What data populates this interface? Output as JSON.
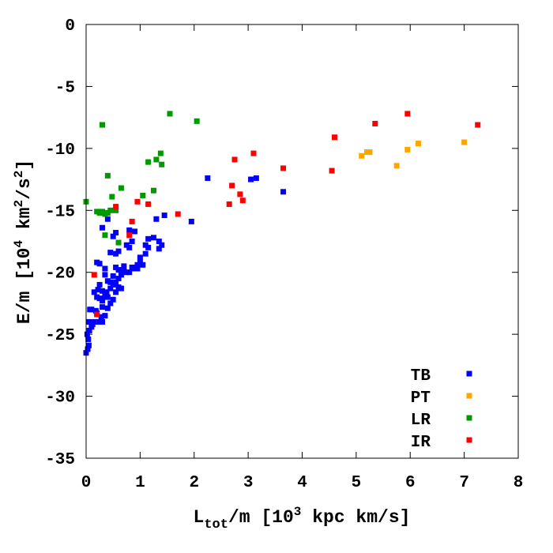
{
  "chart_data": {
    "type": "scatter",
    "xlabel": {
      "main": "L",
      "sub": "tot",
      "rest": "/m [10",
      "sup": "3",
      "tail": " kpc km/s]"
    },
    "ylabel": {
      "main": "E/m [10",
      "sup1": "4",
      "mid": " km",
      "sup2": "2",
      "mid2": "/s",
      "sup3": "2",
      "tail": "]"
    },
    "xlim": [
      0,
      8
    ],
    "ylim": [
      -35,
      0
    ],
    "x_ticks": [
      "0",
      "1",
      "2",
      "3",
      "4",
      "5",
      "6",
      "7",
      "8"
    ],
    "y_ticks": [
      "0",
      "-5",
      "-10",
      "-15",
      "-20",
      "-25",
      "-30",
      "-35"
    ],
    "legend_position": "bottom-right",
    "series": [
      {
        "name": "TB",
        "color": "#0000ff",
        "points": [
          [
            0.0,
            -26.5
          ],
          [
            0.03,
            -26.2
          ],
          [
            0.05,
            -25.9
          ],
          [
            0.04,
            -25.4
          ],
          [
            0.02,
            -25.0
          ],
          [
            0.06,
            -24.7
          ],
          [
            0.1,
            -24.4
          ],
          [
            0.12,
            -24.2
          ],
          [
            0.15,
            -24.0
          ],
          [
            0.05,
            -24.0
          ],
          [
            0.07,
            -23.0
          ],
          [
            0.1,
            -23.0
          ],
          [
            0.2,
            -23.3
          ],
          [
            0.18,
            -23.1
          ],
          [
            0.25,
            -24.0
          ],
          [
            0.3,
            -24.0
          ],
          [
            0.28,
            -23.6
          ],
          [
            0.35,
            -23.5
          ],
          [
            0.3,
            -22.8
          ],
          [
            0.4,
            -22.9
          ],
          [
            0.45,
            -22.5
          ],
          [
            0.5,
            -22.2
          ],
          [
            0.4,
            -22.0
          ],
          [
            0.35,
            -21.9
          ],
          [
            0.3,
            -22.3
          ],
          [
            0.25,
            -22.1
          ],
          [
            0.2,
            -22.0
          ],
          [
            0.15,
            -21.6
          ],
          [
            0.22,
            -21.4
          ],
          [
            0.25,
            -21.0
          ],
          [
            0.3,
            -21.5
          ],
          [
            0.38,
            -21.6
          ],
          [
            0.45,
            -21.3
          ],
          [
            0.5,
            -21.0
          ],
          [
            0.55,
            -21.6
          ],
          [
            0.6,
            -21.2
          ],
          [
            0.65,
            -21.3
          ],
          [
            0.55,
            -20.8
          ],
          [
            0.45,
            -20.8
          ],
          [
            0.4,
            -20.7
          ],
          [
            0.6,
            -20.5
          ],
          [
            0.65,
            -20.2
          ],
          [
            0.7,
            -19.9
          ],
          [
            0.75,
            -20.0
          ],
          [
            0.8,
            -20.0
          ],
          [
            0.7,
            -19.5
          ],
          [
            0.6,
            -19.8
          ],
          [
            0.55,
            -19.6
          ],
          [
            0.5,
            -20.3
          ],
          [
            0.35,
            -19.7
          ],
          [
            0.35,
            -20.2
          ],
          [
            0.2,
            -19.2
          ],
          [
            0.25,
            -19.3
          ],
          [
            0.85,
            -19.6
          ],
          [
            0.9,
            -19.7
          ],
          [
            0.95,
            -19.4
          ],
          [
            1.0,
            -19.2
          ],
          [
            1.05,
            -19.4
          ],
          [
            1.0,
            -18.8
          ],
          [
            0.95,
            -19.7
          ],
          [
            1.1,
            -18.5
          ],
          [
            1.15,
            -18.0
          ],
          [
            1.1,
            -17.8
          ],
          [
            1.15,
            -17.3
          ],
          [
            1.25,
            -17.2
          ],
          [
            1.35,
            -17.5
          ],
          [
            1.4,
            -17.8
          ],
          [
            1.35,
            -18.1
          ],
          [
            0.6,
            -18.3
          ],
          [
            0.55,
            -18.5
          ],
          [
            0.45,
            -18.4
          ],
          [
            0.8,
            -18.0
          ],
          [
            0.75,
            -17.8
          ],
          [
            0.85,
            -17.5
          ],
          [
            0.8,
            -16.6
          ],
          [
            0.9,
            -16.7
          ],
          [
            0.55,
            -16.8
          ],
          [
            0.5,
            -17.1
          ],
          [
            0.3,
            -16.4
          ],
          [
            0.4,
            -15.7
          ],
          [
            1.3,
            -15.7
          ],
          [
            1.45,
            -15.4
          ],
          [
            1.95,
            -15.9
          ],
          [
            2.25,
            -12.4
          ],
          [
            3.05,
            -12.5
          ],
          [
            3.15,
            -12.4
          ],
          [
            3.65,
            -13.5
          ]
        ]
      },
      {
        "name": "PT",
        "color": "#ffa500",
        "points": [
          [
            5.1,
            -10.6
          ],
          [
            5.2,
            -10.3
          ],
          [
            5.25,
            -10.3
          ],
          [
            5.75,
            -11.4
          ],
          [
            5.95,
            -10.1
          ],
          [
            6.15,
            -9.6
          ],
          [
            7.0,
            -9.5
          ]
        ]
      },
      {
        "name": "LR",
        "color": "#009900",
        "points": [
          [
            0.0,
            -14.3
          ],
          [
            0.3,
            -8.1
          ],
          [
            0.2,
            -15.1
          ],
          [
            0.25,
            -15.2
          ],
          [
            0.3,
            -15.1
          ],
          [
            0.35,
            -15.3
          ],
          [
            0.35,
            -17.0
          ],
          [
            0.4,
            -15.2
          ],
          [
            0.45,
            -15.0
          ],
          [
            0.4,
            -12.2
          ],
          [
            0.48,
            -13.9
          ],
          [
            0.55,
            -15.0
          ],
          [
            0.6,
            -17.6
          ],
          [
            0.65,
            -13.2
          ],
          [
            1.05,
            -13.8
          ],
          [
            1.15,
            -11.1
          ],
          [
            1.25,
            -13.4
          ],
          [
            1.3,
            -10.9
          ],
          [
            1.38,
            -10.4
          ],
          [
            1.4,
            -11.3
          ],
          [
            1.55,
            -7.2
          ],
          [
            2.05,
            -7.8
          ]
        ]
      },
      {
        "name": "IR",
        "color": "#ff0000",
        "points": [
          [
            0.15,
            -20.2
          ],
          [
            0.2,
            -23.4
          ],
          [
            0.55,
            -14.7
          ],
          [
            0.8,
            -17.0
          ],
          [
            0.85,
            -15.9
          ],
          [
            0.95,
            -14.3
          ],
          [
            1.15,
            -14.5
          ],
          [
            1.7,
            -15.3
          ],
          [
            2.65,
            -14.5
          ],
          [
            2.7,
            -13.0
          ],
          [
            2.75,
            -10.9
          ],
          [
            2.85,
            -13.7
          ],
          [
            2.9,
            -14.2
          ],
          [
            3.1,
            -10.4
          ],
          [
            3.65,
            -11.6
          ],
          [
            4.55,
            -11.8
          ],
          [
            4.6,
            -9.1
          ],
          [
            5.35,
            -8.0
          ],
          [
            5.95,
            -7.2
          ],
          [
            7.25,
            -8.1
          ]
        ]
      }
    ]
  }
}
